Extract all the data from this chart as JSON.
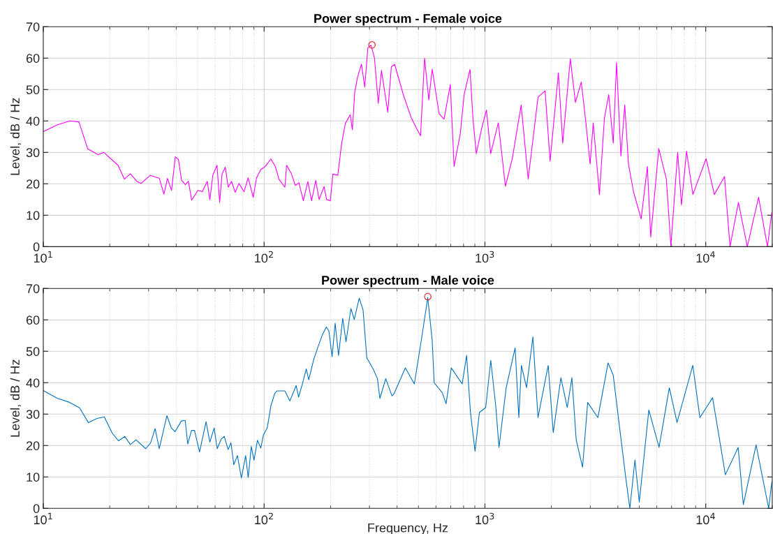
{
  "chart_data": [
    {
      "type": "line",
      "title": "Power spectrum - Female voice",
      "ylabel": "Level, dB / Hz",
      "log": "x",
      "grid": true,
      "xlim": [
        10,
        20000
      ],
      "ylim": [
        0,
        70
      ],
      "xticks": [
        {
          "value": 10,
          "label": "10$^{1}$"
        },
        {
          "value": 100,
          "label": "10$^{2}$"
        },
        {
          "value": 1000,
          "label": "10$^{3}$"
        },
        {
          "value": 10000,
          "label": "10$^{4}$"
        }
      ],
      "yticks": [
        0,
        10,
        20,
        30,
        40,
        50,
        60,
        70
      ],
      "marker": "none",
      "line_style": "solid",
      "series": [
        {
          "color": "#ff00ff",
          "x": [
            10,
            11.6,
            13.2,
            14.5,
            15.9,
            17.7,
            18.8,
            21.8,
            23.3,
            24.8,
            26.5,
            27.7,
            30.5,
            33.5,
            35.2,
            36.5,
            38.1,
            39.6,
            40.9,
            42.3,
            44,
            45.4,
            47,
            50.1,
            52.5,
            55.3,
            56.8,
            58.6,
            61.2,
            62.9,
            64.5,
            66.7,
            68.8,
            71.2,
            74,
            76.9,
            81.1,
            84.7,
            89.3,
            92.4,
            96.6,
            101.2,
            107.3,
            112.4,
            117,
            124.2,
            126.5,
            133.1,
            138.4,
            143.9,
            150.5,
            157.8,
            164.1,
            171.4,
            177.4,
            186.9,
            191.9,
            199.5,
            204.8,
            215.6,
            224.3,
            233.3,
            245.5,
            251,
            257.3,
            265.3,
            276,
            285.6,
            295,
            305,
            316,
            328.8,
            340,
            363,
            377,
            390,
            428.5,
            464,
            489,
            511,
            533,
            557,
            577,
            620,
            653,
            697,
            725,
            774,
            805,
            856,
            883,
            914,
            968,
            1016,
            1062,
            1150,
            1238,
            1330,
            1459,
            1570,
            1740,
            1873,
            1973,
            2152,
            2250,
            2436,
            2569,
            2731,
            2858,
            2995,
            3093,
            3300,
            3477,
            3636,
            3811,
            3945,
            4129,
            4297,
            4468,
            4711,
            5097,
            5441,
            5633,
            6127,
            6631,
            6953,
            7463,
            7763,
            8185,
            8745,
            10040,
            10940,
            12160,
            12880,
            14060,
            15420,
            17350,
            19030,
            19900
          ],
          "values": [
            36.6,
            38.8,
            40,
            39.7,
            31.1,
            29.3,
            30,
            25.9,
            21.5,
            23.2,
            20.8,
            20.1,
            22.7,
            21.8,
            16.7,
            21.7,
            17.9,
            28.6,
            27.8,
            21.1,
            19.7,
            20.8,
            14.8,
            17.9,
            17.5,
            20.8,
            14.9,
            22.8,
            25.9,
            14.1,
            23.1,
            25.3,
            18.9,
            20.8,
            17.3,
            20.1,
            17.5,
            21.9,
            15.7,
            21.9,
            24.5,
            25.5,
            27.9,
            25.5,
            21.3,
            18.9,
            25.9,
            23.1,
            19.5,
            20.3,
            14.6,
            20.7,
            14.6,
            21.1,
            15,
            19.1,
            15,
            14.6,
            23.1,
            22.7,
            32.7,
            39.2,
            42,
            37.2,
            49.2,
            54.1,
            58.1,
            50.8,
            63.3,
            64.1,
            60.1,
            45.6,
            56.1,
            42.8,
            57.3,
            58,
            48,
            41,
            37.8,
            35.3,
            60,
            46.7,
            56.5,
            42.3,
            40.6,
            51.6,
            25.5,
            36.1,
            48.4,
            56.4,
            40.6,
            29.6,
            37.8,
            43.5,
            29.6,
            39.4,
            19.2,
            28,
            45.1,
            21.5,
            47.6,
            49.6,
            27.2,
            55.3,
            32.9,
            59.8,
            45.9,
            52.4,
            40.2,
            26.3,
            39.4,
            16.6,
            41,
            48.4,
            32.9,
            58.6,
            28.8,
            45.1,
            26.3,
            17.4,
            8.8,
            25.5,
            3.1,
            31.2,
            21.5,
            0.2,
            30,
            13.3,
            30.4,
            16.6,
            28,
            16.6,
            22.3,
            0,
            14.1,
            0,
            15.7,
            0,
            10.8
          ]
        },
        {
          "type": "scatter",
          "color": "#e0303a",
          "marker": "circle",
          "x": [
            308
          ],
          "values": [
            64.2
          ]
        }
      ]
    },
    {
      "type": "line",
      "title": "Power spectrum - Male voice",
      "xlabel": "Frequency, Hz",
      "ylabel": "Level, dB / Hz",
      "log": "x",
      "grid": true,
      "xlim": [
        10,
        20000
      ],
      "ylim": [
        0,
        70
      ],
      "xticks": [
        {
          "value": 10,
          "label": "10$^{1}$"
        },
        {
          "value": 100,
          "label": "10$^{2}$"
        },
        {
          "value": 1000,
          "label": "10$^{3}$"
        },
        {
          "value": 10000,
          "label": "10$^{4}$"
        }
      ],
      "yticks": [
        0,
        10,
        20,
        30,
        40,
        50,
        60,
        70
      ],
      "marker": "none",
      "line_style": "solid",
      "series": [
        {
          "color": "#0072bd",
          "x": [
            10,
            11.6,
            13.1,
            14.6,
            16,
            17.5,
            18.9,
            20.5,
            21.9,
            23.4,
            24.8,
            26.3,
            29.1,
            30.6,
            32.1,
            33.5,
            36.3,
            38,
            39.5,
            42.2,
            43.9,
            45.1,
            46.9,
            48.4,
            51,
            54.6,
            56.8,
            59.4,
            61.3,
            64,
            66,
            68.7,
            70.8,
            72.9,
            75.7,
            78.9,
            82.5,
            84.7,
            87.5,
            90,
            93.3,
            96.6,
            99.3,
            103.3,
            107.4,
            111.7,
            114.6,
            124.1,
            130.8,
            139.7,
            143.3,
            149.2,
            155.2,
            159.3,
            167.9,
            175.5,
            184,
            191.4,
            196.5,
            203.2,
            209.8,
            217.3,
            227,
            234.9,
            247.2,
            255.9,
            269.7,
            280.6,
            291.8,
            311.6,
            326,
            334.4,
            355.6,
            379.4,
            387,
            436,
            479,
            519,
            551,
            577,
            589,
            641,
            667,
            704,
            789,
            826,
            860,
            902,
            944,
            1008,
            1063,
            1121,
            1158,
            1248,
            1370,
            1424,
            1463,
            1543,
            1649,
            1739,
            1934,
            2039,
            2208,
            2360,
            2477,
            2590,
            2768,
            2919,
            3248,
            3612,
            3811,
            4072,
            4355,
            4532,
            4779,
            5000,
            5524,
            6146,
            6840,
            7411,
            8737,
            9405,
            10740,
            12270,
            14020,
            14800,
            16900,
            19280,
            19900
          ],
          "values": [
            37.5,
            35,
            33.8,
            32,
            27.3,
            28.6,
            29.1,
            24,
            21.5,
            22.9,
            20.3,
            21.8,
            19,
            20.8,
            25.4,
            19,
            29.5,
            25.6,
            24.4,
            27.8,
            28,
            20.5,
            24.8,
            24.8,
            17.9,
            27.6,
            21.1,
            25.6,
            19,
            22.1,
            22.9,
            18.7,
            20.9,
            13.9,
            16.8,
            9.7,
            16.8,
            9.8,
            19.7,
            15.3,
            21.7,
            19.2,
            23.4,
            25.6,
            32.7,
            36.6,
            37.4,
            37.4,
            34.2,
            39.1,
            35.4,
            39.7,
            44.4,
            40.9,
            47.5,
            51.4,
            55.4,
            57.7,
            56.5,
            48.3,
            58.9,
            48.7,
            60.5,
            53,
            63.6,
            60.1,
            66.9,
            63.2,
            47.9,
            44.4,
            41.3,
            35,
            41.3,
            35.8,
            36.4,
            44.7,
            39.6,
            55,
            67.1,
            53.4,
            40,
            36.8,
            33.3,
            44.7,
            39.6,
            48.7,
            30.5,
            18.2,
            30.5,
            32.1,
            47.1,
            32.1,
            19.4,
            38.4,
            51.1,
            28.9,
            45.5,
            38.4,
            54.6,
            28.9,
            45.5,
            24.1,
            41.6,
            32.1,
            41.6,
            21.8,
            13.1,
            33.7,
            28.9,
            46.3,
            42.4,
            25.7,
            9.1,
            0,
            15.4,
            2,
            31.3,
            19.4,
            38.4,
            27.3,
            45.5,
            28.9,
            35.2,
            10.7,
            19.4,
            1.2,
            20.2,
            0,
            8.3
          ]
        },
        {
          "type": "scatter",
          "color": "#e0303a",
          "marker": "circle",
          "x": [
            551
          ],
          "values": [
            67.4
          ]
        }
      ]
    }
  ]
}
